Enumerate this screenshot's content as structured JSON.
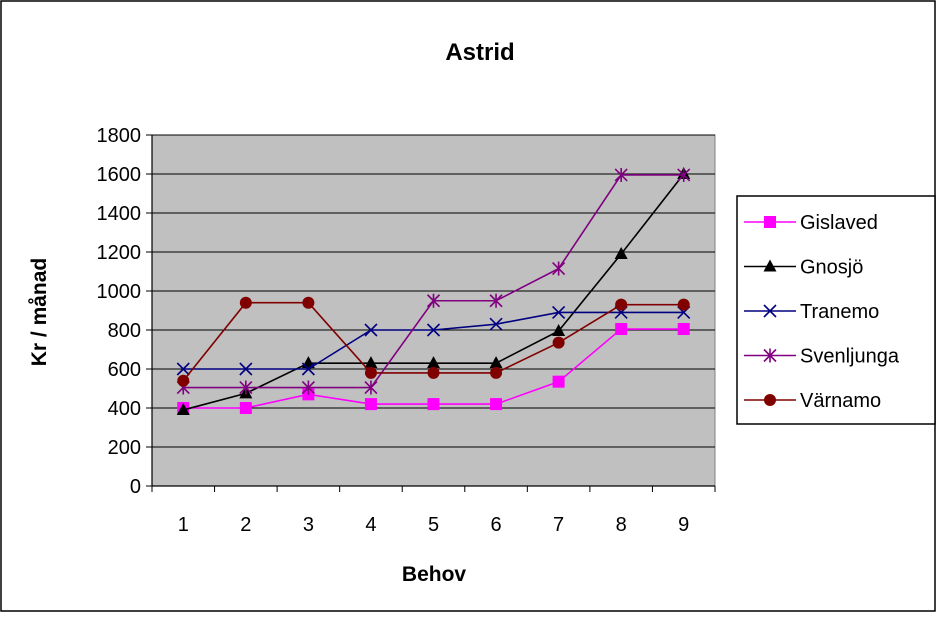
{
  "chart_data": {
    "type": "line",
    "title": "Astrid",
    "xlabel": "Behov",
    "ylabel": "Kr / månad",
    "categories": [
      "1",
      "2",
      "3",
      "4",
      "5",
      "6",
      "7",
      "8",
      "9"
    ],
    "ylim": [
      0,
      1800
    ],
    "yticks": [
      0,
      200,
      400,
      600,
      800,
      1000,
      1200,
      1400,
      1600,
      1800
    ],
    "grid": true,
    "legend_position": "right",
    "plot_background": "#c0c0c0",
    "series": [
      {
        "name": "Gislaved",
        "color": "#ff00ff",
        "marker": "square",
        "values": [
          400,
          400,
          470,
          420,
          420,
          420,
          535,
          805,
          805
        ]
      },
      {
        "name": "Gnosjö",
        "color": "#000000",
        "marker": "triangle",
        "values": [
          390,
          475,
          630,
          630,
          630,
          630,
          795,
          1190,
          1600
        ]
      },
      {
        "name": "Tranemo",
        "color": "#000080",
        "marker": "x",
        "values": [
          600,
          600,
          600,
          800,
          800,
          830,
          890,
          890,
          890
        ]
      },
      {
        "name": "Svenljunga",
        "color": "#800080",
        "marker": "star",
        "values": [
          505,
          505,
          505,
          505,
          950,
          950,
          1115,
          1595,
          1595
        ]
      },
      {
        "name": "Värnamo",
        "color": "#800000",
        "marker": "circle",
        "values": [
          540,
          940,
          940,
          580,
          580,
          580,
          735,
          930,
          930
        ]
      }
    ]
  }
}
